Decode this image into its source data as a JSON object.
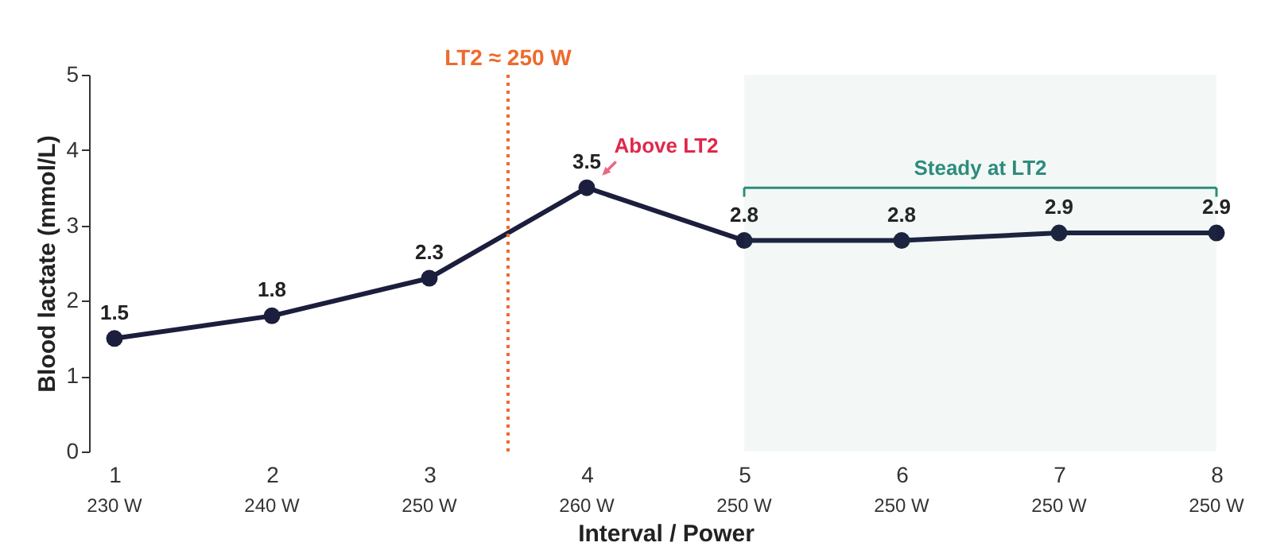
{
  "chart_data": {
    "type": "line",
    "x": [
      1,
      2,
      3,
      4,
      5,
      6,
      7,
      8
    ],
    "series": [
      {
        "color": "#1b1e3c",
        "values": [
          1.5,
          1.8,
          2.3,
          3.5,
          2.8,
          2.8,
          2.9,
          2.9
        ]
      }
    ],
    "data_labels": true,
    "xlim": [
      1,
      8
    ],
    "xticks": [
      1,
      2,
      3,
      4,
      5,
      6,
      7,
      8
    ],
    "ylim": [
      0,
      5
    ],
    "yticks": [
      0,
      1,
      2,
      3,
      4,
      5
    ],
    "xlabel": "Interval / Power",
    "ylabel": "Blood lactate (mmol/L)",
    "ref_lines": [
      {
        "axis": "x",
        "value": 3.5,
        "label": "LT2 ≈ 250 W",
        "color": "#ee6a2c",
        "line_style": "dotted"
      }
    ],
    "bands": [
      {
        "axis": "x",
        "from": 5,
        "to": 8,
        "label": "Steady at LT2",
        "color": "#2e8c7c"
      }
    ],
    "annotations": [
      {
        "text": "Above LT2",
        "x": 4,
        "y": 3.5
      },
      "230 W",
      "240 W",
      "250 W",
      "260 W",
      "250 W",
      "250 W",
      "250 W",
      "250 W"
    ],
    "marker": "circle",
    "line_style": "solid",
    "grid": false
  }
}
